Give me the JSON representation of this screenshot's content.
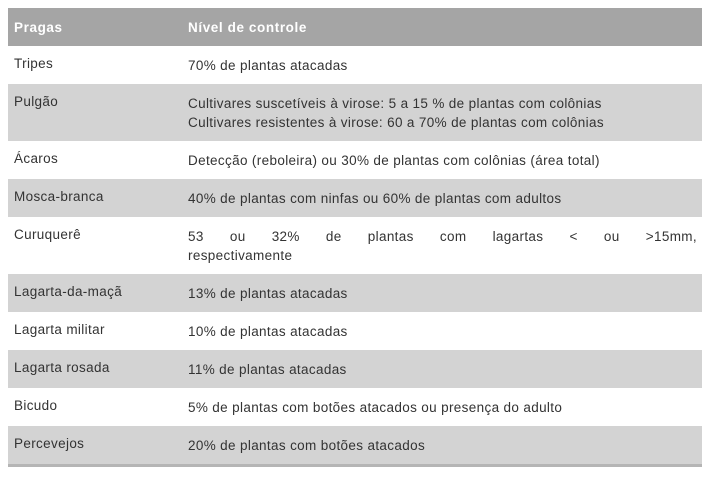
{
  "table": {
    "title_semantic": "pest control levels table",
    "header": {
      "pests_label": "Pragas",
      "control_level_label": "Nível de controle"
    },
    "rows": [
      {
        "pest": "Tripes",
        "level": [
          "70% de plantas atacadas"
        ],
        "shade": false
      },
      {
        "pest": "Pulgão",
        "level": [
          "Cultivares suscetíveis à virose: 5 a 15 % de plantas com colônias",
          "Cultivares resistentes à virose: 60 a 70% de plantas com colônias"
        ],
        "shade": true
      },
      {
        "pest": "Ácaros",
        "level": [
          "Detecção (reboleira) ou 30% de plantas com colônias (área total)"
        ],
        "shade": false
      },
      {
        "pest": "Mosca-branca",
        "level": [
          "40% de plantas com ninfas ou 60% de plantas com adultos"
        ],
        "shade": true
      },
      {
        "pest": "Curuquerê",
        "level": [
          "53 ou 32% de plantas com lagartas < ou >15mm,",
          "respectivamente"
        ],
        "justify_first": true,
        "shade": false
      },
      {
        "pest": "Lagarta-da-maçã",
        "level": [
          "13% de plantas atacadas"
        ],
        "shade": true
      },
      {
        "pest": "Lagarta militar",
        "level": [
          "10% de plantas atacadas"
        ],
        "shade": false
      },
      {
        "pest": "Lagarta rosada",
        "level": [
          "11% de plantas atacadas"
        ],
        "shade": true
      },
      {
        "pest": "Bicudo",
        "level": [
          "5% de plantas com botões atacados ou presença do adulto"
        ],
        "shade": false
      },
      {
        "pest": "Percevejos",
        "level": [
          "20% de plantas com botões atacados"
        ],
        "shade": true
      }
    ],
    "colors": {
      "header_bg": "#a5a5a5",
      "header_text": "#ffffff",
      "shade_bg": "#d3d3d3",
      "row_bg": "#ffffff",
      "text": "#333333",
      "bottom_border": "#b5b5b5"
    }
  }
}
